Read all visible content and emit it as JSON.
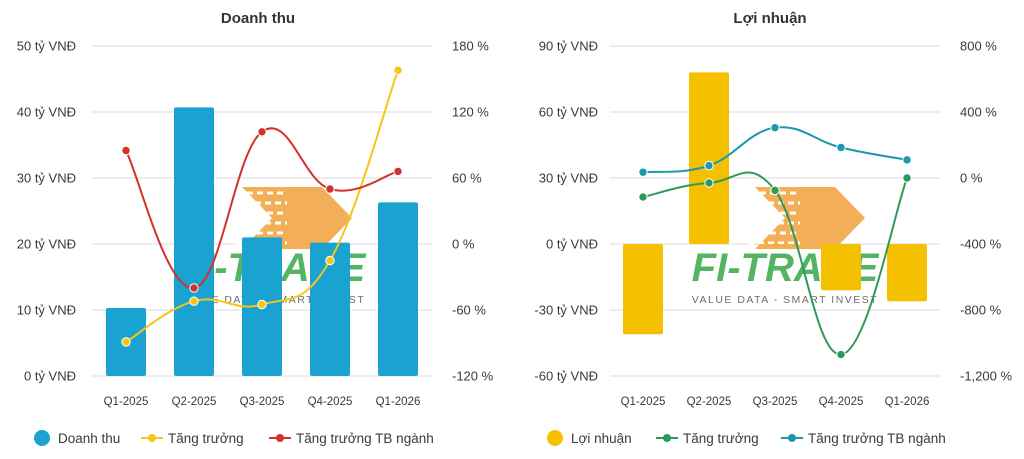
{
  "chart_data": [
    {
      "type": "bar",
      "title": "Doanh thu",
      "categories": [
        "Q1-2025",
        "Q2-2025",
        "Q3-2025",
        "Q4-2025",
        "Q1-2026"
      ],
      "y_left": {
        "min": 0,
        "max": 50,
        "step": 10,
        "tick_labels": [
          "0 tỷ VNĐ",
          "10 tỷ VNĐ",
          "20 tỷ VNĐ",
          "30 tỷ VNĐ",
          "40 tỷ VNĐ",
          "50 tỷ VNĐ"
        ]
      },
      "y_right": {
        "min": -120,
        "max": 180,
        "step": 60,
        "tick_labels": [
          "-120 %",
          "-60 %",
          "0 %",
          "60 %",
          "120 %",
          "180 %"
        ]
      },
      "series": [
        {
          "name": "Doanh thu",
          "type": "bar",
          "axis": "left",
          "color": "#1aa3d1",
          "values": [
            10.3,
            40.7,
            21.0,
            20.2,
            26.3
          ]
        },
        {
          "name": "Tăng trưởng",
          "type": "line",
          "axis": "right",
          "color": "#f5c518",
          "values": [
            -89,
            -52,
            -55,
            -15,
            158
          ]
        },
        {
          "name": "Tăng trưởng TB ngành",
          "type": "line",
          "axis": "right",
          "color": "#d0332c",
          "values": [
            85,
            -40,
            102,
            50,
            66
          ]
        }
      ],
      "grid": true,
      "legend": "bottom"
    },
    {
      "type": "bar",
      "title": "Lợi nhuận",
      "categories": [
        "Q1-2025",
        "Q2-2025",
        "Q3-2025",
        "Q4-2025",
        "Q1-2026"
      ],
      "y_left": {
        "min": -60,
        "max": 90,
        "step": 30,
        "tick_labels": [
          "-60 tỷ VNĐ",
          "-30 tỷ VNĐ",
          "0 tỷ VNĐ",
          "30 tỷ VNĐ",
          "60 tỷ VNĐ",
          "90 tỷ VNĐ"
        ]
      },
      "y_right": {
        "min": -1200,
        "max": 800,
        "step": 400,
        "tick_labels": [
          "-1,200 %",
          "-800 %",
          "-400 %",
          "0 %",
          "400 %",
          "800 %"
        ]
      },
      "series": [
        {
          "name": "Lợi nhuận",
          "type": "bar",
          "axis": "left",
          "color": "#f5c000",
          "values": [
            -41,
            78,
            0,
            -21,
            -26
          ]
        },
        {
          "name": "Tăng trưởng",
          "type": "line",
          "axis": "right",
          "color": "#2e9a5a",
          "values": [
            -115,
            -30,
            -75,
            -1070,
            0
          ]
        },
        {
          "name": "Tăng trưởng TB ngành",
          "type": "line",
          "axis": "right",
          "color": "#1a98ad",
          "values": [
            35,
            75,
            305,
            185,
            110
          ]
        }
      ],
      "grid": true,
      "legend": "bottom"
    }
  ],
  "watermark": {
    "brand": "FI-TRADE",
    "tagline": "VALUE DATA - SMART INVEST"
  }
}
